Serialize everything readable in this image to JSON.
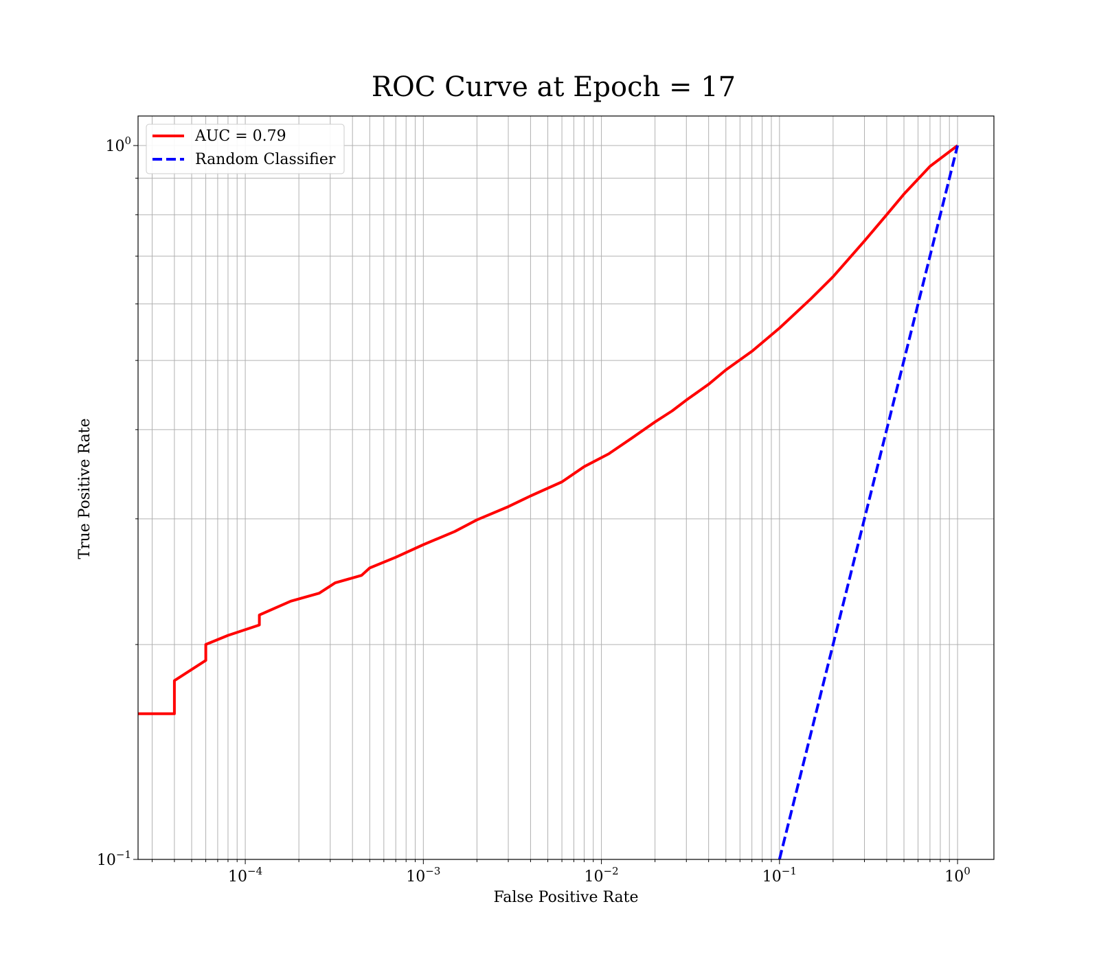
{
  "chart_data": {
    "type": "line",
    "title": "ROC Curve at Epoch = 17",
    "xlabel": "False Positive Rate",
    "ylabel": "True Positive Rate",
    "xscale": "log",
    "yscale": "log",
    "xlim": [
      2.5e-05,
      1.6
    ],
    "ylim": [
      0.1,
      1.1
    ],
    "grid": "both major and minor",
    "legend_position": "upper left",
    "x_ticks": [
      {
        "base": "10",
        "exp": "−4",
        "value": 0.0001
      },
      {
        "base": "10",
        "exp": "−3",
        "value": 0.001
      },
      {
        "base": "10",
        "exp": "−2",
        "value": 0.01
      },
      {
        "base": "10",
        "exp": "−1",
        "value": 0.1
      },
      {
        "base": "10",
        "exp": "0",
        "value": 1
      }
    ],
    "y_ticks": [
      {
        "base": "10",
        "exp": "−1",
        "value": 0.1
      },
      {
        "base": "10",
        "exp": "0",
        "value": 1
      }
    ],
    "series": [
      {
        "name": "AUC = 0.79",
        "color": "#ff0000",
        "style": "solid",
        "points": [
          [
            2.5e-05,
            0.16
          ],
          [
            4e-05,
            0.16
          ],
          [
            4e-05,
            0.178
          ],
          [
            6e-05,
            0.19
          ],
          [
            6e-05,
            0.2
          ],
          [
            8e-05,
            0.206
          ],
          [
            0.00012,
            0.213
          ],
          [
            0.00012,
            0.22
          ],
          [
            0.00018,
            0.23
          ],
          [
            0.00026,
            0.236
          ],
          [
            0.00032,
            0.244
          ],
          [
            0.00045,
            0.25
          ],
          [
            0.0005,
            0.256
          ],
          [
            0.0007,
            0.265
          ],
          [
            0.001,
            0.276
          ],
          [
            0.0015,
            0.288
          ],
          [
            0.002,
            0.299
          ],
          [
            0.003,
            0.312
          ],
          [
            0.004,
            0.323
          ],
          [
            0.006,
            0.338
          ],
          [
            0.008,
            0.355
          ],
          [
            0.011,
            0.37
          ],
          [
            0.015,
            0.39
          ],
          [
            0.02,
            0.41
          ],
          [
            0.025,
            0.425
          ],
          [
            0.03,
            0.44
          ],
          [
            0.04,
            0.463
          ],
          [
            0.05,
            0.485
          ],
          [
            0.07,
            0.515
          ],
          [
            0.1,
            0.555
          ],
          [
            0.15,
            0.61
          ],
          [
            0.2,
            0.655
          ],
          [
            0.3,
            0.735
          ],
          [
            0.4,
            0.8
          ],
          [
            0.5,
            0.855
          ],
          [
            0.7,
            0.935
          ],
          [
            1.0,
            1.0
          ]
        ]
      },
      {
        "name": "Random Classifier",
        "color": "#0000ff",
        "style": "dashed",
        "points": [
          [
            0.1,
            0.1
          ],
          [
            1.0,
            1.0
          ]
        ]
      }
    ]
  }
}
